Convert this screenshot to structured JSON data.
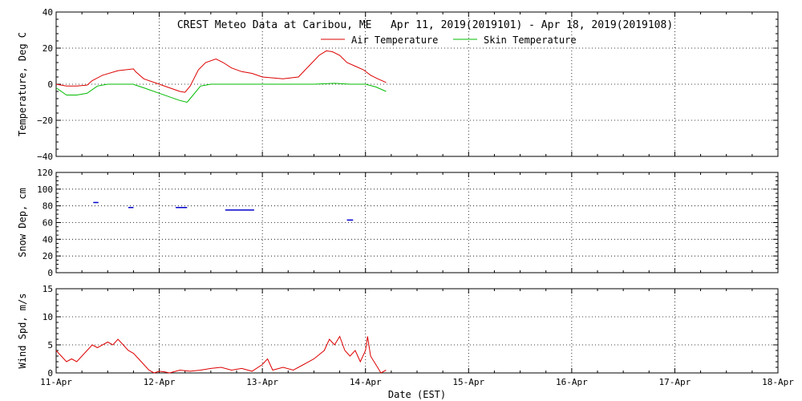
{
  "title": "CREST Meteo Data at Caribou, ME   Apr 11, 2019(2019101) - Apr 18, 2019(2019108)",
  "xlabel": "Date (EST)",
  "x_ticks": [
    "11-Apr",
    "12-Apr",
    "13-Apr",
    "14-Apr",
    "15-Apr",
    "16-Apr",
    "17-Apr",
    "18-Apr"
  ],
  "colors": {
    "air": "#dd0000",
    "skin": "#00bb00",
    "snow": "#0000cc",
    "wind": "#dd0000",
    "axis": "#000000"
  },
  "legend": [
    {
      "name": "Air Temperature",
      "color": "#dd0000"
    },
    {
      "name": "Skin Temperature",
      "color": "#00bb00"
    }
  ],
  "chart_data": [
    {
      "type": "line",
      "ylabel": "Temperature, Deg C",
      "ylim": [
        -40,
        40
      ],
      "yticks": [
        "40",
        "20",
        "0",
        "−20",
        "−40"
      ],
      "xlim": [
        0,
        7
      ],
      "x_unit": "days since 11-Apr",
      "grid": true,
      "series": [
        {
          "name": "Air Temperature",
          "color": "#dd0000",
          "x": [
            0,
            0.1,
            0.2,
            0.3,
            0.35,
            0.45,
            0.6,
            0.75,
            0.77,
            0.85,
            1.0,
            1.1,
            1.2,
            1.25,
            1.3,
            1.38,
            1.45,
            1.55,
            1.62,
            1.7,
            1.8,
            1.9,
            2.0,
            2.1,
            2.2,
            2.35,
            2.45,
            2.55,
            2.62,
            2.68,
            2.75,
            2.82,
            2.9,
            2.98,
            3.05,
            3.12,
            3.2
          ],
          "y": [
            0,
            -1,
            -1,
            -0.5,
            2,
            5,
            7.5,
            8.5,
            7,
            3,
            0,
            -2,
            -4,
            -4.5,
            -1,
            8,
            12,
            14,
            12,
            9,
            7,
            6,
            4,
            3.5,
            3,
            4,
            10,
            16,
            18.5,
            18,
            16,
            12,
            10,
            8,
            5,
            3,
            1
          ]
        },
        {
          "name": "Skin Temperature",
          "color": "#00bb00",
          "x": [
            0,
            0.1,
            0.2,
            0.3,
            0.4,
            0.5,
            0.6,
            0.75,
            0.77,
            0.85,
            1.0,
            1.1,
            1.2,
            1.27,
            1.3,
            1.4,
            1.5,
            1.6,
            1.8,
            2.0,
            2.5,
            2.7,
            2.85,
            3.0,
            3.1,
            3.2
          ],
          "y": [
            -2,
            -6,
            -6,
            -5,
            -1,
            0,
            0,
            0,
            -0.5,
            -2,
            -5,
            -7,
            -9,
            -10,
            -8,
            -1,
            0,
            0,
            0,
            0,
            0,
            0.5,
            0,
            0,
            -1.5,
            -4
          ]
        }
      ]
    },
    {
      "type": "scatter",
      "ylabel": "Snow Dep, cm",
      "ylim": [
        0,
        120
      ],
      "yticks": [
        "120",
        "100",
        "80",
        "60",
        "40",
        "20",
        "0"
      ],
      "xlim": [
        0,
        7
      ],
      "grid": true,
      "segments": [
        {
          "x_start": 0.36,
          "x_end": 0.41,
          "value": 84
        },
        {
          "x_start": 0.7,
          "x_end": 0.75,
          "value": 78
        },
        {
          "x_start": 1.16,
          "x_end": 1.27,
          "value": 78
        },
        {
          "x_start": 1.64,
          "x_end": 1.92,
          "value": 75
        },
        {
          "x_start": 2.82,
          "x_end": 2.88,
          "value": 63
        }
      ]
    },
    {
      "type": "line",
      "ylabel": "Wind Spd, m/s",
      "ylim": [
        0,
        15
      ],
      "yticks": [
        "15",
        "10",
        "5",
        "0"
      ],
      "xlim": [
        0,
        7
      ],
      "grid": true,
      "series": [
        {
          "name": "",
          "color": "#dd0000",
          "x": [
            0,
            0.05,
            0.1,
            0.15,
            0.2,
            0.25,
            0.3,
            0.35,
            0.4,
            0.45,
            0.5,
            0.55,
            0.6,
            0.65,
            0.7,
            0.75,
            0.8,
            0.85,
            0.9,
            0.95,
            1.0,
            1.05,
            1.1,
            1.2,
            1.3,
            1.4,
            1.5,
            1.6,
            1.7,
            1.8,
            1.9,
            2.0,
            2.05,
            2.1,
            2.2,
            2.3,
            2.4,
            2.5,
            2.6,
            2.65,
            2.7,
            2.75,
            2.8,
            2.85,
            2.9,
            2.95,
            3.0,
            3.02,
            3.05,
            3.1,
            3.15,
            3.2
          ],
          "y": [
            4,
            3,
            2,
            2.5,
            2,
            3,
            4,
            5,
            4.5,
            5,
            5.5,
            5,
            6,
            5,
            4,
            3.5,
            2.5,
            1.5,
            0.5,
            0,
            0.3,
            0.2,
            0,
            0.5,
            0.3,
            0.5,
            0.8,
            1,
            0.5,
            0.8,
            0.3,
            1.5,
            2.5,
            0.5,
            1,
            0.5,
            1.5,
            2.5,
            4,
            6,
            5,
            6.5,
            4,
            3,
            4,
            2,
            4,
            6.5,
            3,
            1.5,
            0,
            0.5
          ]
        }
      ]
    }
  ]
}
